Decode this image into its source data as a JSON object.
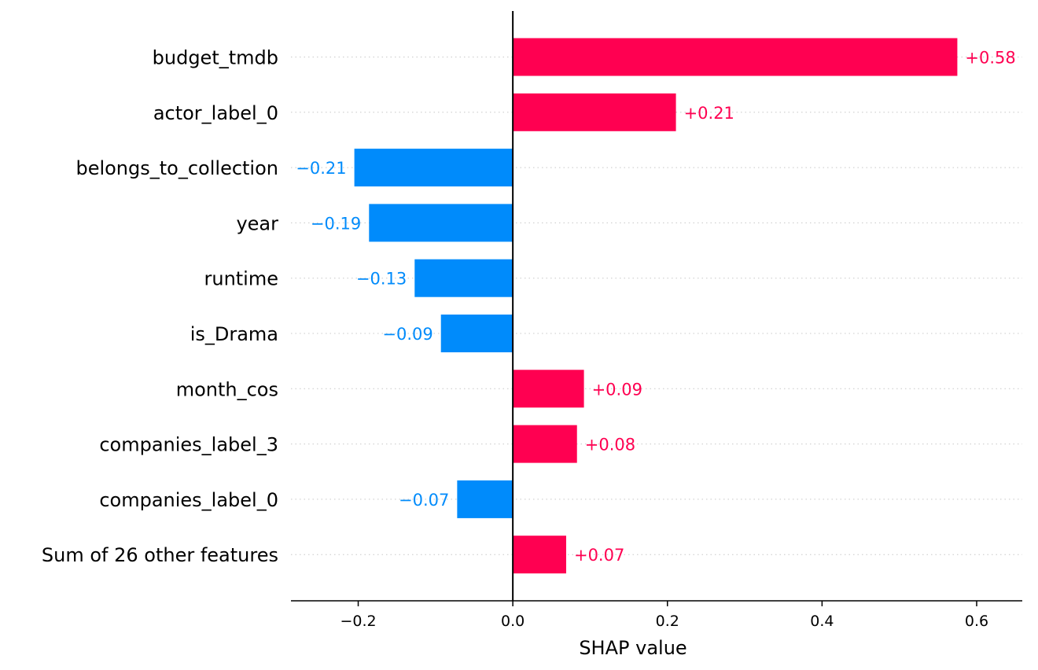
{
  "chart_data": {
    "type": "bar",
    "orientation": "horizontal",
    "xlabel": "SHAP value",
    "xlim": [
      -0.287,
      0.659
    ],
    "grid": "dotted row guides",
    "colors": {
      "positive": "#ff0051",
      "negative": "#008bfb"
    },
    "x_ticks": [
      {
        "value": -0.2,
        "label": "−0.2"
      },
      {
        "value": 0.0,
        "label": "0.0"
      },
      {
        "value": 0.2,
        "label": "0.2"
      },
      {
        "value": 0.4,
        "label": "0.4"
      },
      {
        "value": 0.6,
        "label": "0.6"
      }
    ],
    "features": [
      {
        "name": "budget_tmdb",
        "value": 0.575,
        "label": "+0.58"
      },
      {
        "name": "actor_label_0",
        "value": 0.211,
        "label": "+0.21"
      },
      {
        "name": "belongs_to_collection",
        "value": -0.205,
        "label": "−0.21"
      },
      {
        "name": "year",
        "value": -0.186,
        "label": "−0.19"
      },
      {
        "name": "runtime",
        "value": -0.127,
        "label": "−0.13"
      },
      {
        "name": "is_Drama",
        "value": -0.093,
        "label": "−0.09"
      },
      {
        "name": "month_cos",
        "value": 0.092,
        "label": "+0.09"
      },
      {
        "name": "companies_label_3",
        "value": 0.083,
        "label": "+0.08"
      },
      {
        "name": "companies_label_0",
        "value": -0.072,
        "label": "−0.07"
      },
      {
        "name": "Sum of 26 other features",
        "value": 0.069,
        "label": "+0.07"
      }
    ]
  }
}
